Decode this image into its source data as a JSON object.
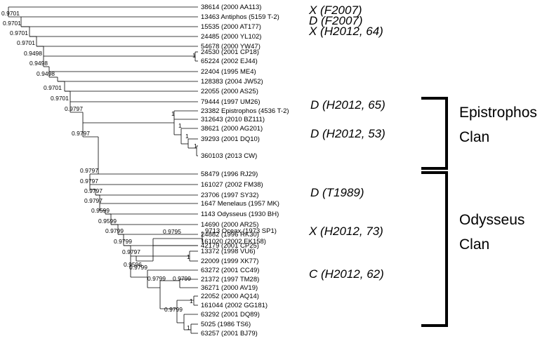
{
  "tree": {
    "leaves": [
      "38614 (2000 AA113)",
      "13463 Antiphos (5159 T-2)",
      "15535 (2000 AT177)",
      "24485 (2000 YL102)",
      "54678 (2000 YW47)",
      "24530 (2001 CP18)",
      "65224 (2002 EJ44)",
      "22404 (1995 ME4)",
      "128383 (2004 JW52)",
      "22055 (2000 AS25)",
      "79444 (1997 UM26)",
      "23382 Epistrophos (4536 T-2)",
      "312643 (2010 BZ111)",
      "38621 (2000 AG201)",
      "39293 (2001 DQ10)",
      "360103 (2013 CW)",
      "58479 (1996 RJ29)",
      "161027 (2002 FM38)",
      "23706 (1997 SY32)",
      "1647 Menelaus (1957 MK)",
      "1143 Odysseus (1930 BH)",
      "14690 (2000 AR25)",
      "24882 (1996 RK30)",
      "42179 (2001 CP25)",
      "9713 Oceax (1973 SP1)",
      "161020 (2002 EK158)",
      "13372 (1998 VU6)",
      "22009 (1999 XK77)",
      "63272 (2001 CC49)",
      "21372 (1997 TM28)",
      "36271 (2000 AV19)",
      "22052 (2000 AQ14)",
      "161044 (2002 GG181)",
      "63292 (2001 DQ89)",
      "5025 (1986 TS6)",
      "63257 (2001 BJ79)"
    ],
    "node_labels": {
      "n1": "0.9701",
      "n2": "0.9701",
      "n3": "0.9701",
      "n4": "0.9701",
      "n5": "0.9498",
      "n6": "0.9498",
      "n7": "0.9498",
      "n8": "0.9701",
      "n9": "0.9701",
      "n10": "0.9797",
      "n11": "0.9797",
      "n12": "0.9797",
      "n13": "0.9797",
      "n14": "0.9797",
      "n15": "0.9797",
      "n16": "0.9599",
      "n17": "0.9599",
      "n18": "0.9799",
      "n19": "0.9799",
      "n20": "0.9797",
      "n21": "0.9795",
      "n22": "0.9596",
      "n23": "0.9799",
      "n24": "0.9799",
      "n25": "0.9799",
      "n26": "0.9799",
      "one_a": "1",
      "one_b": "1",
      "one_c": "1",
      "one_d": "1",
      "one_e": "1",
      "one_f": "1",
      "one_g": "1",
      "one_h": "1"
    }
  },
  "annotations": {
    "a1": "X (F2007)",
    "a2": "D (F2007)",
    "a3": "X (H2012, 64)",
    "a4": "D (H2012, 65)",
    "a5": "D (H2012, 53)",
    "a6": "D (T1989)",
    "a7": "X (H2012, 73)",
    "a8": "C (H2012, 62)"
  },
  "clans": {
    "epistrophos_line1": "Epistrophos",
    "epistrophos_line2": "Clan",
    "odysseus_line1": "Odysseus",
    "odysseus_line2": "Clan"
  }
}
